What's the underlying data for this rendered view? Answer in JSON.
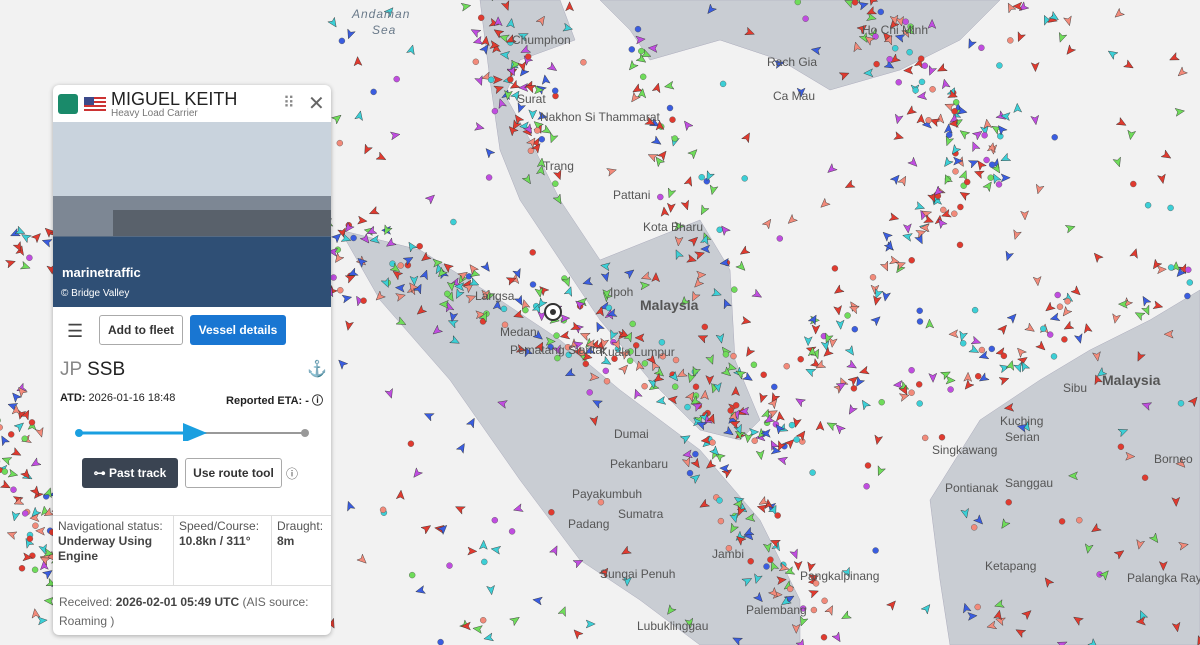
{
  "vessel_panel": {
    "name": "MIGUEL KEITH",
    "vessel_type": "Heavy Load Carrier",
    "photo_watermark": "marinetraffic",
    "photo_credit": "© Bridge Valley",
    "add_to_fleet": "Add to fleet",
    "vessel_details": "Vessel details",
    "destination_country": "JP",
    "destination_port": "SSB",
    "atd_label": "ATD:",
    "atd": "2026-01-16 18:48",
    "eta_label": "Reported ETA:",
    "eta": "-",
    "past_track": "Past track",
    "route_tool": "Use route tool",
    "status": [
      {
        "label": "Navigational status:",
        "value": "Underway Using Engine"
      },
      {
        "label": "Speed/Course:",
        "value": "10.8kn / 311°"
      },
      {
        "label": "Draught:",
        "value": "8m"
      }
    ],
    "received_label": "Received:",
    "received": "2026-02-01 05:49 UTC",
    "ais_source": "(AIS source: Roaming )"
  },
  "map_labels": [
    "Andaman",
    "Sea",
    "Chumphon",
    "Surat",
    "Nakhon Si Thammarat",
    "Trang",
    "Pattani",
    "Kota Bharu",
    "Malaysia",
    "Kuala Lumpur",
    "Medan",
    "Pematang Siantar",
    "Langsa",
    "Ipoh",
    "Dumai",
    "Pekanbaru",
    "Payakumbuh",
    "Padang",
    "Sumatra",
    "Jambi",
    "Sungai Penuh",
    "Lubuklinggau",
    "Palembang",
    "Pangkalpinang",
    "Singkawang",
    "Pontianak",
    "Sanggau",
    "Ketapang",
    "Palangka Raya",
    "Kuching",
    "Serian",
    "Sibu",
    "Malaysia",
    "Borneo",
    "Ho Chi Minh",
    "Rach Gia",
    "Ca Mau"
  ]
}
